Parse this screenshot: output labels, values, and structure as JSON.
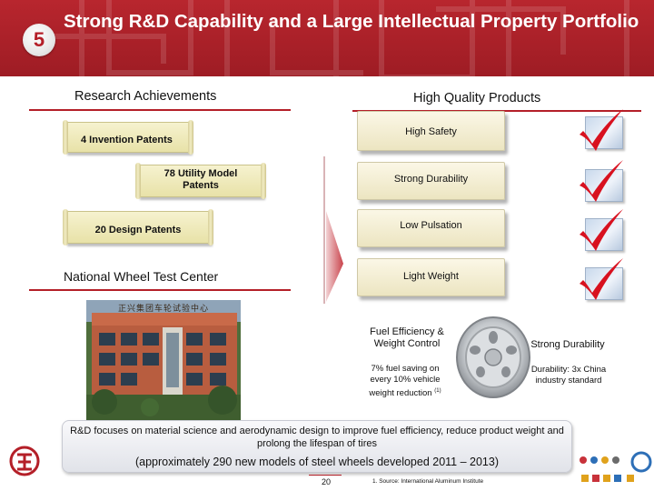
{
  "header": {
    "number": "5",
    "title": "Strong R&D Capability and a Large Intellectual Property Portfolio"
  },
  "research": {
    "title": "Research  Achievements",
    "patents": [
      {
        "label": "4 Invention Patents"
      },
      {
        "label": "78 Utility Model Patents"
      },
      {
        "label": "20 Design Patents"
      }
    ]
  },
  "quality": {
    "title": "High Quality Products",
    "items": [
      {
        "label": "High Safety"
      },
      {
        "label": "Strong Durability"
      },
      {
        "label": "Low Pulsation"
      },
      {
        "label": "Light Weight"
      }
    ]
  },
  "test_center": {
    "title": "National Wheel Test Center",
    "sign_text": "正兴集团车轮试验中心"
  },
  "wheel": {
    "left_title": "Fuel Efficiency & Weight Control",
    "left_note": "7% fuel saving on every 10% vehicle weight reduction",
    "left_note_sup": "(1)",
    "right_title": "Strong Durability",
    "right_note": "Durability: 3x China industry standard"
  },
  "banner": {
    "text": "R&D focuses on material science and aerodynamic design to improve fuel efficiency, reduce product weight and prolong the lifespan of tires",
    "sub": "(approximately 290 new models of steel wheels developed 2011 – 2013)"
  },
  "footer": {
    "page": "20",
    "footnote": "1. Source: International Aluminum Institute"
  },
  "colors": {
    "brand_red": "#b41f28",
    "check_red": "#d8111f"
  }
}
